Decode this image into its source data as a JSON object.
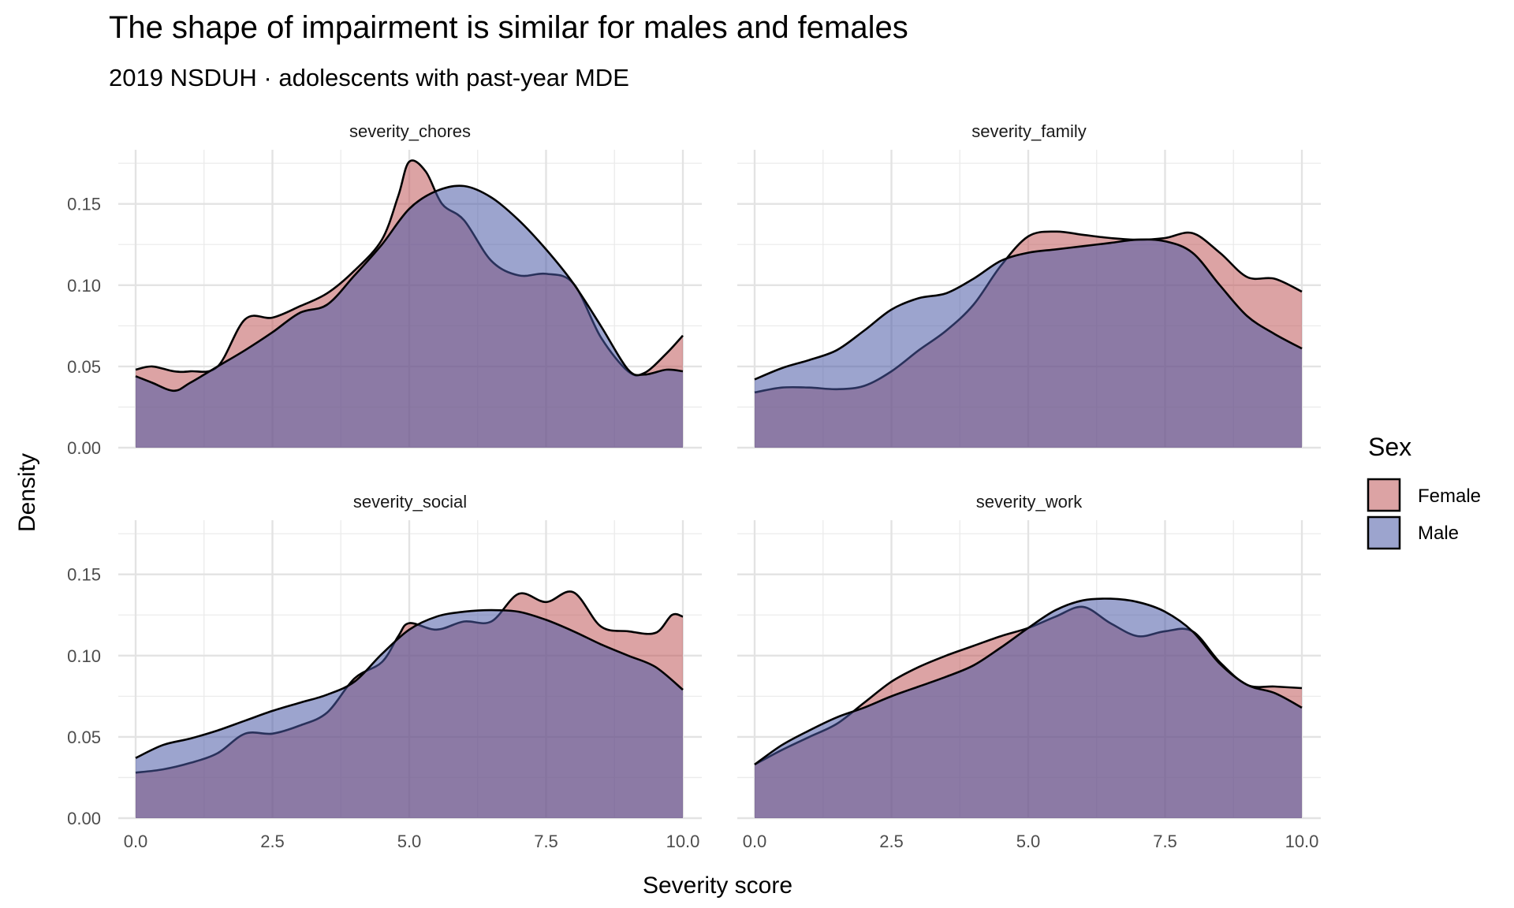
{
  "chart_data": {
    "type": "area",
    "subtype": "faceted-density",
    "title": "The shape of impairment is similar for males and females",
    "subtitle": "2019 NSDUH · adolescents with past-year MDE",
    "xlabel": "Severity score",
    "ylabel": "Density",
    "xlim": [
      0,
      10
    ],
    "ylim": [
      0,
      0.175
    ],
    "x_ticks": [
      0,
      2.5,
      5,
      7.5,
      10
    ],
    "x_tick_labels": [
      "0.0",
      "2.5",
      "5.0",
      "7.5",
      "10.0"
    ],
    "y_ticks": [
      0,
      0.05,
      0.1,
      0.15
    ],
    "y_tick_labels": [
      "0.00",
      "0.05",
      "0.10",
      "0.15"
    ],
    "grid": true,
    "legend": {
      "title": "Sex",
      "position": "right",
      "entries": [
        {
          "label": "Female",
          "color": "#c0585a"
        },
        {
          "label": "Male",
          "color": "#4b59a6"
        }
      ]
    },
    "facets": [
      {
        "label": "severity_chores",
        "series": [
          {
            "name": "Female",
            "color": "#c0585a",
            "x": [
              0,
              0.3,
              0.7,
              1,
              1.5,
              2,
              2.5,
              3,
              3.5,
              4,
              4.5,
              4.8,
              5,
              5.3,
              5.6,
              6,
              6.5,
              7,
              7.5,
              8,
              8.5,
              9,
              9.3,
              9.7,
              10
            ],
            "y": [
              0.048,
              0.05,
              0.047,
              0.047,
              0.05,
              0.079,
              0.08,
              0.087,
              0.095,
              0.109,
              0.128,
              0.155,
              0.176,
              0.17,
              0.15,
              0.14,
              0.115,
              0.106,
              0.107,
              0.101,
              0.068,
              0.047,
              0.046,
              0.058,
              0.069
            ]
          },
          {
            "name": "Male",
            "color": "#4b59a6",
            "x": [
              0,
              0.3,
              0.7,
              1,
              1.5,
              2,
              2.5,
              3,
              3.5,
              4,
              4.5,
              5,
              5.5,
              6,
              6.5,
              7,
              7.5,
              8,
              8.5,
              9,
              9.3,
              9.7,
              10
            ],
            "y": [
              0.044,
              0.04,
              0.035,
              0.04,
              0.05,
              0.06,
              0.071,
              0.083,
              0.088,
              0.106,
              0.125,
              0.147,
              0.158,
              0.161,
              0.154,
              0.14,
              0.122,
              0.101,
              0.075,
              0.048,
              0.045,
              0.048,
              0.047
            ]
          }
        ]
      },
      {
        "label": "severity_family",
        "series": [
          {
            "name": "Female",
            "color": "#c0585a",
            "x": [
              0,
              0.5,
              1,
              1.5,
              2,
              2.5,
              3,
              3.5,
              4,
              4.5,
              5,
              5.5,
              6,
              6.5,
              7,
              7.5,
              8,
              8.5,
              9,
              9.5,
              10
            ],
            "y": [
              0.034,
              0.037,
              0.037,
              0.036,
              0.038,
              0.047,
              0.06,
              0.072,
              0.088,
              0.112,
              0.13,
              0.133,
              0.131,
              0.129,
              0.128,
              0.129,
              0.132,
              0.12,
              0.105,
              0.104,
              0.096
            ]
          },
          {
            "name": "Male",
            "color": "#4b59a6",
            "x": [
              0,
              0.5,
              1,
              1.5,
              2,
              2.5,
              3,
              3.5,
              4,
              4.5,
              5,
              5.5,
              6,
              6.5,
              7,
              7.5,
              8,
              8.5,
              9,
              9.5,
              10
            ],
            "y": [
              0.042,
              0.049,
              0.054,
              0.06,
              0.072,
              0.085,
              0.092,
              0.095,
              0.104,
              0.115,
              0.12,
              0.122,
              0.124,
              0.126,
              0.128,
              0.127,
              0.12,
              0.1,
              0.081,
              0.07,
              0.061
            ]
          }
        ]
      },
      {
        "label": "severity_social",
        "series": [
          {
            "name": "Female",
            "color": "#c0585a",
            "x": [
              0,
              0.5,
              1,
              1.5,
              2,
              2.5,
              3,
              3.5,
              4,
              4.5,
              4.8,
              5,
              5.5,
              6,
              6.5,
              7,
              7.5,
              8,
              8.5,
              9,
              9.5,
              9.8,
              10
            ],
            "y": [
              0.028,
              0.03,
              0.034,
              0.04,
              0.052,
              0.052,
              0.057,
              0.065,
              0.086,
              0.096,
              0.112,
              0.12,
              0.116,
              0.121,
              0.121,
              0.138,
              0.133,
              0.139,
              0.118,
              0.115,
              0.114,
              0.125,
              0.124
            ]
          },
          {
            "name": "Male",
            "color": "#4b59a6",
            "x": [
              0,
              0.5,
              1,
              1.5,
              2,
              2.5,
              3,
              3.5,
              4,
              4.5,
              5,
              5.5,
              6,
              6.5,
              7,
              7.5,
              8,
              8.5,
              9,
              9.5,
              10
            ],
            "y": [
              0.037,
              0.045,
              0.049,
              0.054,
              0.06,
              0.066,
              0.071,
              0.076,
              0.084,
              0.101,
              0.116,
              0.124,
              0.127,
              0.128,
              0.127,
              0.122,
              0.115,
              0.107,
              0.1,
              0.093,
              0.079
            ]
          }
        ]
      },
      {
        "label": "severity_work",
        "series": [
          {
            "name": "Female",
            "color": "#c0585a",
            "x": [
              0,
              0.5,
              1,
              1.5,
              2,
              2.5,
              3,
              3.5,
              4,
              4.5,
              5,
              5.5,
              6,
              6.5,
              7,
              7.5,
              8,
              8.5,
              9,
              9.5,
              10
            ],
            "y": [
              0.033,
              0.042,
              0.05,
              0.058,
              0.071,
              0.084,
              0.093,
              0.1,
              0.106,
              0.112,
              0.117,
              0.124,
              0.13,
              0.12,
              0.112,
              0.115,
              0.115,
              0.096,
              0.082,
              0.081,
              0.08
            ]
          },
          {
            "name": "Male",
            "color": "#4b59a6",
            "x": [
              0,
              0.5,
              1,
              1.5,
              2,
              2.5,
              3,
              3.5,
              4,
              4.5,
              5,
              5.5,
              6,
              6.5,
              7,
              7.5,
              8,
              8.5,
              9,
              9.5,
              10
            ],
            "y": [
              0.033,
              0.045,
              0.054,
              0.062,
              0.068,
              0.075,
              0.081,
              0.087,
              0.094,
              0.105,
              0.117,
              0.128,
              0.134,
              0.135,
              0.133,
              0.127,
              0.115,
              0.095,
              0.082,
              0.077,
              0.068
            ]
          }
        ]
      }
    ]
  }
}
